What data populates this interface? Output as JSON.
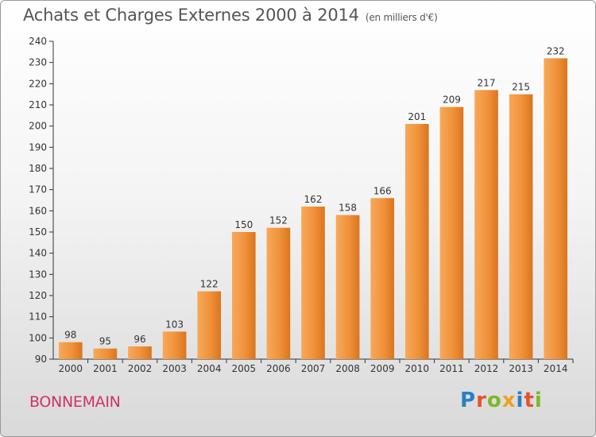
{
  "header": {
    "title": "Achats et Charges Externes 2000 à 2014",
    "subtitle": "(en milliers d'€)"
  },
  "footer": {
    "town": "BONNEMAIN"
  },
  "logo": {
    "letters": [
      {
        "char": "P",
        "color": "#2b7fc3"
      },
      {
        "char": "r",
        "color": "#e8512a"
      },
      {
        "char": "o",
        "color": "#7cb828"
      },
      {
        "char": "x",
        "color": "#f0a020"
      },
      {
        "char": "i",
        "color": "#2b7fc3"
      },
      {
        "char": "t",
        "color": "#e8512a"
      },
      {
        "char": "i",
        "color": "#7cb828"
      }
    ]
  },
  "chart_data": {
    "type": "bar",
    "title": "Achats et Charges Externes 2000 à 2014",
    "subtitle": "(en milliers d'€)",
    "categories": [
      "2000",
      "2001",
      "2002",
      "2003",
      "2004",
      "2005",
      "2006",
      "2007",
      "2008",
      "2009",
      "2010",
      "2011",
      "2012",
      "2013",
      "2014"
    ],
    "values": [
      98,
      95,
      96,
      103,
      122,
      150,
      152,
      162,
      158,
      166,
      201,
      209,
      217,
      215,
      232
    ],
    "ylim": [
      90,
      240
    ],
    "yticks": [
      90,
      100,
      110,
      120,
      130,
      140,
      150,
      160,
      170,
      180,
      190,
      200,
      210,
      220,
      230,
      240
    ],
    "grid": false,
    "bar_color": "#f0913a",
    "bar_color_light": "#f7a95a",
    "bar_color_dark": "#d9761f"
  }
}
